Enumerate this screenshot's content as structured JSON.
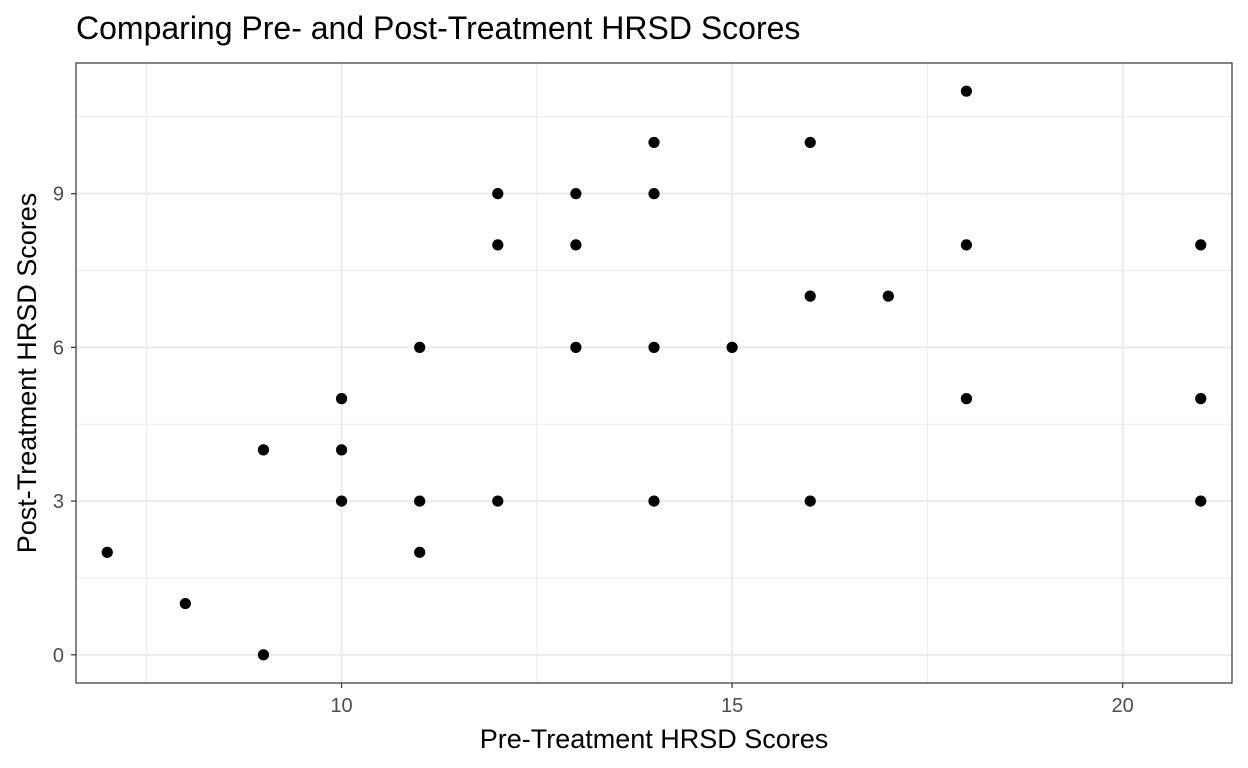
{
  "chart_data": {
    "type": "scatter",
    "title": "Comparing Pre- and Post-Treatment HRSD Scores",
    "xlabel": "Pre-Treatment HRSD Scores",
    "ylabel": "Post-Treatment HRSD Scores",
    "xlim": [
      6.6,
      21.4
    ],
    "ylim": [
      -0.55,
      11.55
    ],
    "xticks": [
      10,
      15,
      20
    ],
    "yticks": [
      0,
      3,
      6,
      9
    ],
    "x_minor_grid": [
      7.5,
      12.5,
      17.5
    ],
    "y_minor_grid": [
      1.5,
      4.5,
      7.5,
      10.5
    ],
    "grid": true,
    "legend": "none",
    "point_color": "#000000",
    "grid_color": "#ebebeb",
    "panel_border_color": "#333333",
    "points": [
      {
        "x": 7,
        "y": 2
      },
      {
        "x": 8,
        "y": 1
      },
      {
        "x": 9,
        "y": 0
      },
      {
        "x": 9,
        "y": 4
      },
      {
        "x": 10,
        "y": 3
      },
      {
        "x": 10,
        "y": 4
      },
      {
        "x": 10,
        "y": 5
      },
      {
        "x": 11,
        "y": 2
      },
      {
        "x": 11,
        "y": 3
      },
      {
        "x": 11,
        "y": 6
      },
      {
        "x": 12,
        "y": 3
      },
      {
        "x": 12,
        "y": 8
      },
      {
        "x": 12,
        "y": 9
      },
      {
        "x": 13,
        "y": 6
      },
      {
        "x": 13,
        "y": 8
      },
      {
        "x": 13,
        "y": 9
      },
      {
        "x": 14,
        "y": 3
      },
      {
        "x": 14,
        "y": 6
      },
      {
        "x": 14,
        "y": 9
      },
      {
        "x": 14,
        "y": 10
      },
      {
        "x": 15,
        "y": 6
      },
      {
        "x": 16,
        "y": 3
      },
      {
        "x": 16,
        "y": 7
      },
      {
        "x": 16,
        "y": 10
      },
      {
        "x": 17,
        "y": 7
      },
      {
        "x": 18,
        "y": 5
      },
      {
        "x": 18,
        "y": 8
      },
      {
        "x": 18,
        "y": 11
      },
      {
        "x": 21,
        "y": 3
      },
      {
        "x": 21,
        "y": 5
      },
      {
        "x": 21,
        "y": 8
      }
    ]
  }
}
